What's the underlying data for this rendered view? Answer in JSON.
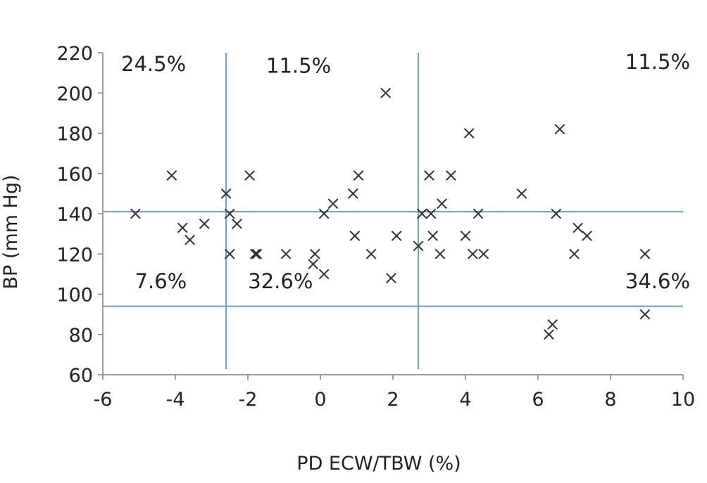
{
  "chart_data": {
    "type": "scatter",
    "xlabel": "PD ECW/TBW (%)",
    "ylabel": "BP (mm Hg)",
    "xlim": [
      -6,
      10
    ],
    "ylim": [
      60,
      220
    ],
    "xticks": [
      -6,
      -4,
      -2,
      0,
      2,
      4,
      6,
      8,
      10
    ],
    "yticks": [
      60,
      80,
      100,
      120,
      140,
      160,
      180,
      200,
      220
    ],
    "xtick_labels": [
      "-6",
      "-4",
      "-2",
      "0",
      "2",
      "4",
      "6",
      "8",
      "10"
    ],
    "ytick_labels": [
      "60",
      "80",
      "100",
      "120",
      "140",
      "160",
      "180",
      "200",
      "220"
    ],
    "grid": false,
    "marker": "x",
    "reference_lines": {
      "vertical_x": [
        -2.6,
        2.7
      ],
      "horizontal_y": [
        94,
        141
      ],
      "color": "#6d9ac9"
    },
    "annotations": [
      {
        "text": "24.5%",
        "x": -4.6,
        "y": 211
      },
      {
        "text": "11.5%",
        "x": -0.6,
        "y": 210
      },
      {
        "text": "11.5%",
        "x": 9.3,
        "y": 212
      },
      {
        "text": "7.6%",
        "x": -4.4,
        "y": 103
      },
      {
        "text": "32.6%",
        "x": -1.1,
        "y": 103
      },
      {
        "text": "34.6%",
        "x": 9.3,
        "y": 103
      }
    ],
    "points": [
      {
        "x": -5.1,
        "y": 140
      },
      {
        "x": -4.1,
        "y": 159
      },
      {
        "x": -3.8,
        "y": 133
      },
      {
        "x": -3.6,
        "y": 127
      },
      {
        "x": -3.2,
        "y": 135
      },
      {
        "x": -2.6,
        "y": 150
      },
      {
        "x": -2.5,
        "y": 140
      },
      {
        "x": -2.5,
        "y": 120
      },
      {
        "x": -2.3,
        "y": 135
      },
      {
        "x": -1.95,
        "y": 159
      },
      {
        "x": -1.8,
        "y": 120
      },
      {
        "x": -1.75,
        "y": 120
      },
      {
        "x": -0.95,
        "y": 120
      },
      {
        "x": -0.15,
        "y": 120
      },
      {
        "x": -0.2,
        "y": 115
      },
      {
        "x": 0.1,
        "y": 140
      },
      {
        "x": 0.1,
        "y": 110
      },
      {
        "x": 0.35,
        "y": 145
      },
      {
        "x": 0.9,
        "y": 150
      },
      {
        "x": 0.95,
        "y": 129
      },
      {
        "x": 1.05,
        "y": 159
      },
      {
        "x": 1.4,
        "y": 120
      },
      {
        "x": 1.8,
        "y": 200
      },
      {
        "x": 1.95,
        "y": 108
      },
      {
        "x": 2.1,
        "y": 129
      },
      {
        "x": 2.7,
        "y": 124
      },
      {
        "x": 2.8,
        "y": 140
      },
      {
        "x": 3.0,
        "y": 159
      },
      {
        "x": 3.05,
        "y": 140
      },
      {
        "x": 3.1,
        "y": 129
      },
      {
        "x": 3.3,
        "y": 120
      },
      {
        "x": 3.35,
        "y": 145
      },
      {
        "x": 3.6,
        "y": 159
      },
      {
        "x": 4.0,
        "y": 129
      },
      {
        "x": 4.1,
        "y": 180
      },
      {
        "x": 4.2,
        "y": 120
      },
      {
        "x": 4.35,
        "y": 140
      },
      {
        "x": 4.5,
        "y": 120
      },
      {
        "x": 5.55,
        "y": 150
      },
      {
        "x": 6.3,
        "y": 80
      },
      {
        "x": 6.4,
        "y": 85
      },
      {
        "x": 6.5,
        "y": 140
      },
      {
        "x": 6.6,
        "y": 182
      },
      {
        "x": 7.0,
        "y": 120
      },
      {
        "x": 7.1,
        "y": 133
      },
      {
        "x": 7.35,
        "y": 129
      },
      {
        "x": 8.95,
        "y": 120
      },
      {
        "x": 8.95,
        "y": 90
      }
    ]
  }
}
